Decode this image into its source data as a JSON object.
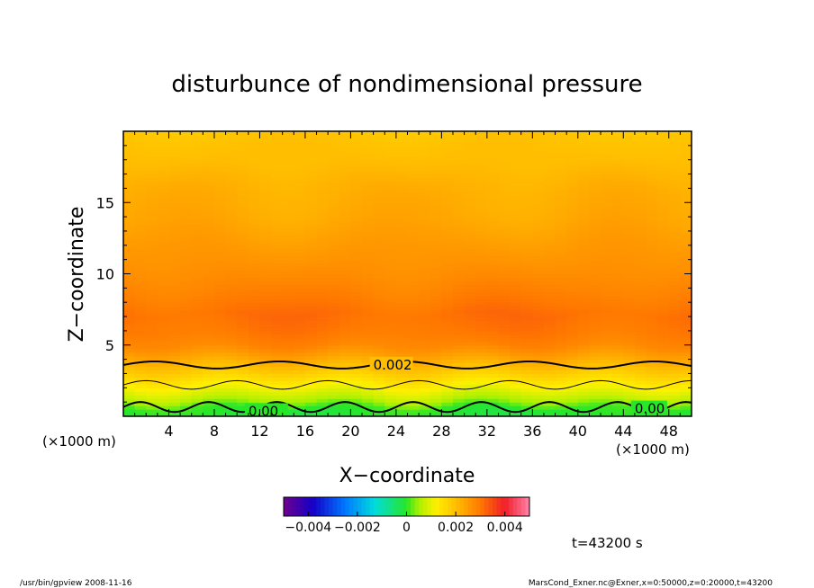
{
  "chart_data": {
    "type": "heatmap",
    "title": "disturbunce of nondimensional pressure",
    "xlabel": "X−coordinate",
    "ylabel": "Z−coordinate",
    "x_unit_left": "(×1000 m)",
    "x_unit_right": "(×1000 m)",
    "x_range": [
      0,
      50
    ],
    "z_range": [
      0,
      20
    ],
    "x_ticks": [
      "4",
      "8",
      "12",
      "16",
      "20",
      "24",
      "28",
      "32",
      "36",
      "40",
      "44",
      "48"
    ],
    "x_tick_values": [
      4,
      8,
      12,
      16,
      20,
      24,
      28,
      32,
      36,
      40,
      44,
      48
    ],
    "z_ticks": [
      "5",
      "10",
      "15"
    ],
    "z_tick_values": [
      5,
      10,
      15
    ],
    "profile": [
      {
        "z": 0,
        "value": -0.0001
      },
      {
        "z": 0.6,
        "value": 0.0
      },
      {
        "z": 1.2,
        "value": 0.0006
      },
      {
        "z": 2.0,
        "value": 0.0011
      },
      {
        "z": 2.8,
        "value": 0.0016
      },
      {
        "z": 3.5,
        "value": 0.002
      },
      {
        "z": 4.2,
        "value": 0.0024
      },
      {
        "z": 5.0,
        "value": 0.0028
      },
      {
        "z": 6.0,
        "value": 0.003
      },
      {
        "z": 7.2,
        "value": 0.0031
      },
      {
        "z": 8.5,
        "value": 0.0029
      },
      {
        "z": 10.0,
        "value": 0.0027
      },
      {
        "z": 12.0,
        "value": 0.0025
      },
      {
        "z": 14.0,
        "value": 0.0023
      },
      {
        "z": 16.0,
        "value": 0.0022
      },
      {
        "z": 18.0,
        "value": 0.002
      },
      {
        "z": 20.0,
        "value": 0.0019
      }
    ],
    "contours": [
      {
        "label": "0.002",
        "value": 0.002,
        "z_mean": 3.6,
        "amp": 0.25,
        "wavelength": 11,
        "style": "bold",
        "label_x": 22
      },
      {
        "label": "",
        "value": 0.001,
        "z_mean": 2.2,
        "amp": 0.3,
        "wavelength": 8,
        "style": "thin",
        "label_x": null
      },
      {
        "label": "0.00",
        "value": 0.0,
        "z_mean": 0.65,
        "amp": 0.35,
        "wavelength": 6,
        "style": "bold",
        "label_x": 11
      }
    ],
    "extra_contour_labels": [
      {
        "label": "0.00",
        "x": 45,
        "z": 0.4
      }
    ],
    "colorbar": {
      "min": -0.005,
      "max": 0.005,
      "tick_labels": [
        "−0.004",
        "−0.002",
        "0",
        "0.002",
        "0.004"
      ],
      "tick_values": [
        -0.004,
        -0.002,
        0,
        0.002,
        0.004
      ]
    },
    "time_label": "t=43200 s"
  },
  "footer": {
    "left": "/usr/bin/gpview  2008-11-16",
    "right": "MarsCond_Exner.nc@Exner,x=0:50000,z=0:20000,t=43200"
  }
}
